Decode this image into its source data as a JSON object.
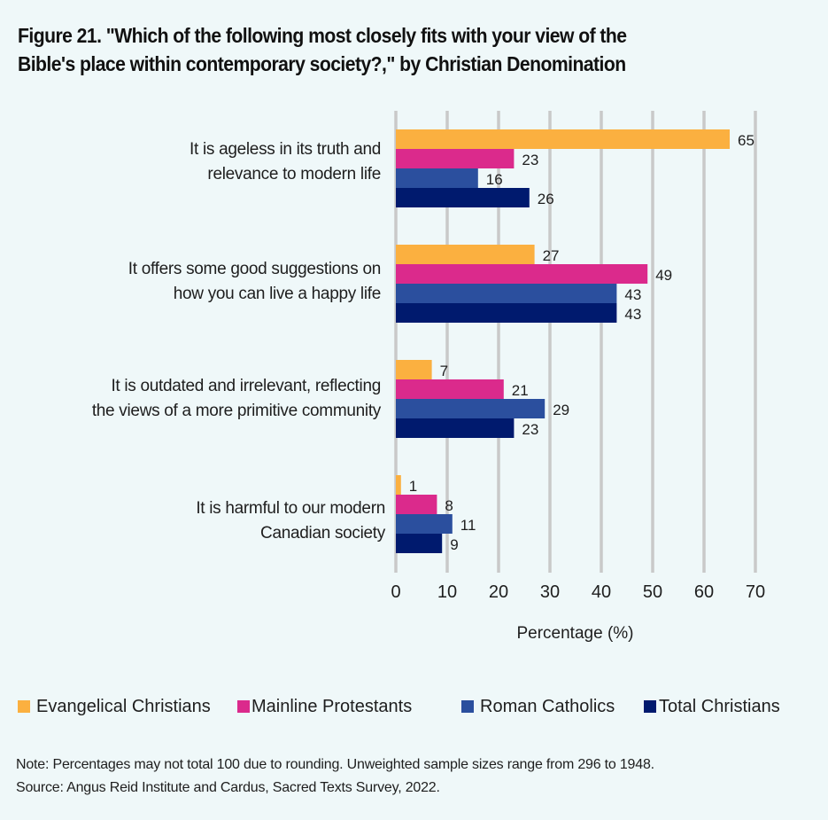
{
  "title_lines": [
    "Figure 21. \"Which of the following most closely fits with your view of the",
    "Bible's place within contemporary society?,\" by Christian Denomination"
  ],
  "colors": {
    "background": "#eff8f9",
    "gridline": "#c9c9c9",
    "Evangelical Christians": "#fbb040",
    "Mainline Protestants": "#db2a8c",
    "Roman Catholics": "#2b4f9e",
    "Total Christians": "#001a6e"
  },
  "chart_data": {
    "type": "bar",
    "orientation": "horizontal",
    "title": "Figure 21. \"Which of the following most closely fits with your view of the Bible's place within contemporary society?,\" by Christian Denomination",
    "categories": [
      [
        "It is ageless in its truth and",
        "relevance to modern life"
      ],
      [
        "It offers some good suggestions on",
        "how you can live a happy life"
      ],
      [
        "It is outdated and irrelevant, reflecting",
        "the views of a more primitive community"
      ],
      [
        "It is harmful to our modern",
        "Canadian society"
      ]
    ],
    "series": [
      {
        "name": "Evangelical Christians",
        "values": [
          65,
          27,
          7,
          1
        ]
      },
      {
        "name": "Mainline Protestants",
        "values": [
          23,
          49,
          21,
          8
        ]
      },
      {
        "name": "Roman Catholics",
        "values": [
          16,
          43,
          29,
          11
        ]
      },
      {
        "name": "Total Christians",
        "values": [
          26,
          43,
          23,
          9
        ]
      }
    ],
    "xlabel": "Percentage (%)",
    "ylabel": "",
    "xlim": [
      0,
      70
    ],
    "xticks": [
      0,
      10,
      20,
      30,
      40,
      50,
      60,
      70
    ],
    "grid": true,
    "legend_position": "bottom",
    "data_labels": true
  },
  "note_lines": [
    "Note: Percentages may not total 100 due to rounding. Unweighted sample sizes range from 296 to 1948.",
    "Source: Angus Reid Institute and Cardus, Sacred Texts Survey, 2022."
  ]
}
